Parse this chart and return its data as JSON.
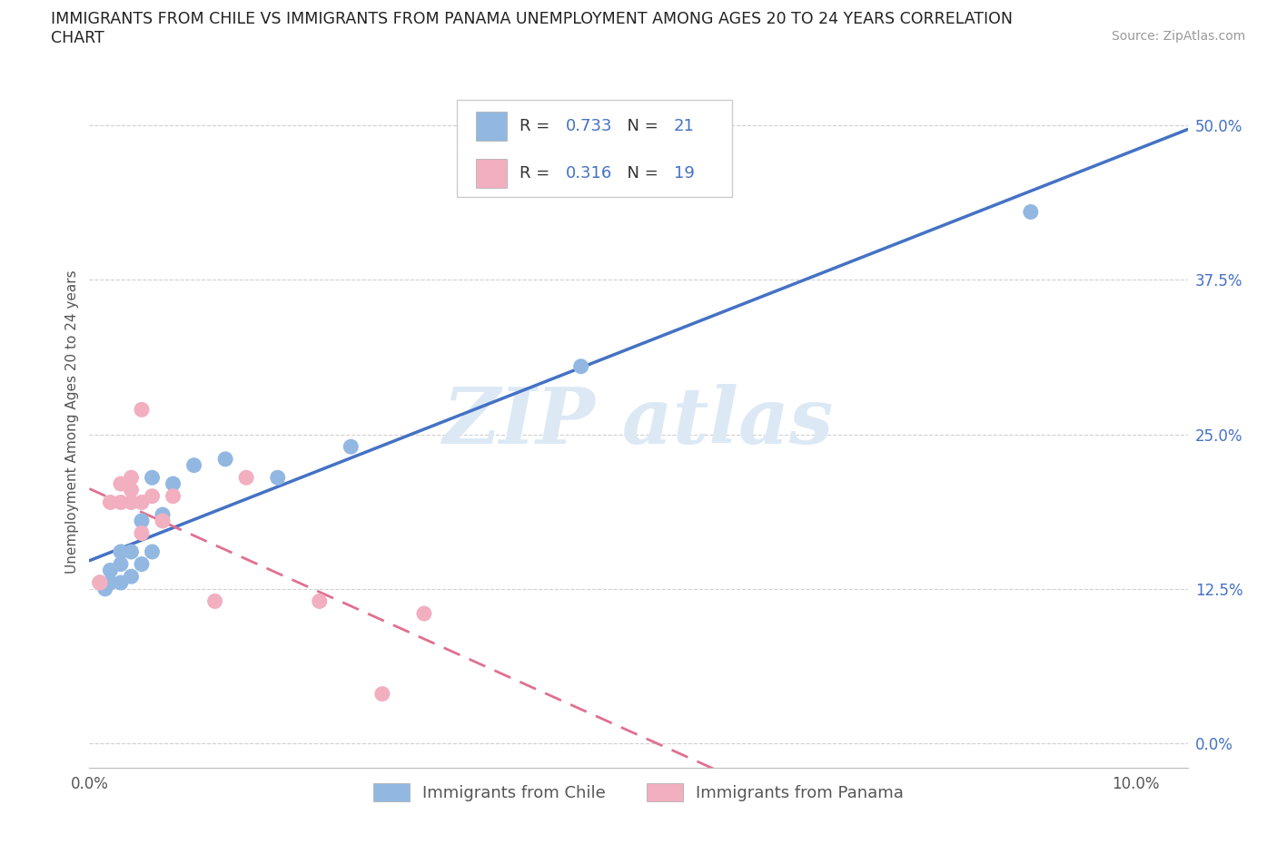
{
  "title_line1": "IMMIGRANTS FROM CHILE VS IMMIGRANTS FROM PANAMA UNEMPLOYMENT AMONG AGES 20 TO 24 YEARS CORRELATION",
  "title_line2": "CHART",
  "source": "Source: ZipAtlas.com",
  "ylabel": "Unemployment Among Ages 20 to 24 years",
  "xlim": [
    0.0,
    0.105
  ],
  "ylim": [
    -0.02,
    0.54
  ],
  "yticks": [
    0.0,
    0.125,
    0.25,
    0.375,
    0.5
  ],
  "ytick_labels": [
    "0.0%",
    "12.5%",
    "25.0%",
    "37.5%",
    "50.0%"
  ],
  "xtick_positions": [
    0.0,
    0.025,
    0.05,
    0.075,
    0.1
  ],
  "xtick_labels": [
    "0.0%",
    "",
    "",
    "",
    "10.0%"
  ],
  "chile_color": "#92b8e2",
  "panama_color": "#f2afc0",
  "chile_line_color": "#4472c4",
  "panama_line_color": "#e07090",
  "R_chile": "0.733",
  "N_chile": "21",
  "R_panama": "0.316",
  "N_panama": "19",
  "stat_color": "#4472c4",
  "stat_label_color": "#333333",
  "chile_x": [
    0.001,
    0.0015,
    0.002,
    0.002,
    0.003,
    0.003,
    0.003,
    0.004,
    0.004,
    0.005,
    0.005,
    0.006,
    0.006,
    0.007,
    0.008,
    0.01,
    0.013,
    0.018,
    0.025,
    0.047,
    0.09
  ],
  "chile_y": [
    0.13,
    0.125,
    0.13,
    0.14,
    0.13,
    0.145,
    0.155,
    0.135,
    0.155,
    0.145,
    0.18,
    0.155,
    0.215,
    0.185,
    0.21,
    0.225,
    0.23,
    0.215,
    0.24,
    0.305,
    0.43
  ],
  "panama_x": [
    0.001,
    0.001,
    0.002,
    0.003,
    0.003,
    0.004,
    0.004,
    0.004,
    0.005,
    0.005,
    0.005,
    0.006,
    0.007,
    0.008,
    0.012,
    0.015,
    0.022,
    0.028,
    0.032
  ],
  "panama_y": [
    0.13,
    0.13,
    0.195,
    0.195,
    0.21,
    0.195,
    0.205,
    0.215,
    0.17,
    0.195,
    0.27,
    0.2,
    0.18,
    0.2,
    0.115,
    0.215,
    0.115,
    0.04,
    0.105
  ],
  "grid_color": "#d0d0d0",
  "bg_color": "#ffffff",
  "legend_label_chile": "Immigrants from Chile",
  "legend_label_panama": "Immigrants from Panama",
  "watermark_color": "#dce9f5"
}
